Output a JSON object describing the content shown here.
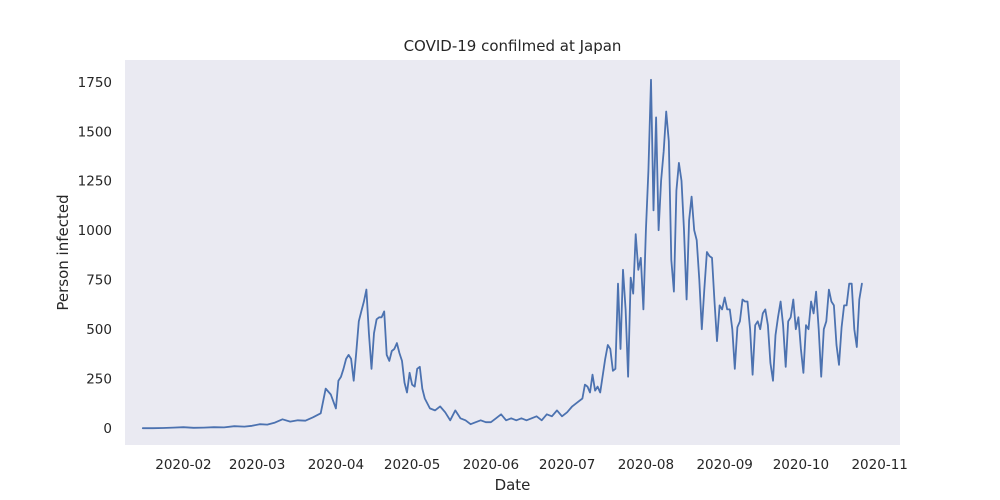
{
  "chart_data": {
    "type": "line",
    "title": "COVID-19 confilmed at Japan",
    "xlabel": "Date",
    "ylabel": "Person infected",
    "grid": false,
    "x_range": [
      "2020-01-09",
      "2020-11-09"
    ],
    "x_ticks": [
      "2020-02",
      "2020-03",
      "2020-04",
      "2020-05",
      "2020-06",
      "2020-07",
      "2020-08",
      "2020-09",
      "2020-10",
      "2020-11"
    ],
    "ylim": [
      -85,
      1860
    ],
    "y_ticks": [
      0,
      250,
      500,
      750,
      1000,
      1250,
      1500,
      1750
    ],
    "series": [
      {
        "color": "#4c72b0",
        "points": [
          [
            "2020-01-16",
            0
          ],
          [
            "2020-01-20",
            0
          ],
          [
            "2020-01-24",
            1
          ],
          [
            "2020-01-28",
            3
          ],
          [
            "2020-02-01",
            5
          ],
          [
            "2020-02-05",
            2
          ],
          [
            "2020-02-09",
            3
          ],
          [
            "2020-02-13",
            5
          ],
          [
            "2020-02-17",
            4
          ],
          [
            "2020-02-21",
            10
          ],
          [
            "2020-02-25",
            8
          ],
          [
            "2020-02-28",
            12
          ],
          [
            "2020-03-02",
            20
          ],
          [
            "2020-03-05",
            18
          ],
          [
            "2020-03-08",
            28
          ],
          [
            "2020-03-11",
            45
          ],
          [
            "2020-03-14",
            33
          ],
          [
            "2020-03-17",
            40
          ],
          [
            "2020-03-20",
            38
          ],
          [
            "2020-03-23",
            55
          ],
          [
            "2020-03-26",
            75
          ],
          [
            "2020-03-28",
            200
          ],
          [
            "2020-03-30",
            170
          ],
          [
            "2020-04-01",
            100
          ],
          [
            "2020-04-02",
            240
          ],
          [
            "2020-04-03",
            260
          ],
          [
            "2020-04-04",
            300
          ],
          [
            "2020-04-05",
            350
          ],
          [
            "2020-04-06",
            370
          ],
          [
            "2020-04-07",
            350
          ],
          [
            "2020-04-08",
            240
          ],
          [
            "2020-04-09",
            380
          ],
          [
            "2020-04-10",
            540
          ],
          [
            "2020-04-11",
            590
          ],
          [
            "2020-04-12",
            640
          ],
          [
            "2020-04-13",
            700
          ],
          [
            "2020-04-14",
            480
          ],
          [
            "2020-04-15",
            300
          ],
          [
            "2020-04-16",
            480
          ],
          [
            "2020-04-17",
            550
          ],
          [
            "2020-04-18",
            560
          ],
          [
            "2020-04-19",
            560
          ],
          [
            "2020-04-20",
            590
          ],
          [
            "2020-04-21",
            370
          ],
          [
            "2020-04-22",
            340
          ],
          [
            "2020-04-23",
            390
          ],
          [
            "2020-04-24",
            400
          ],
          [
            "2020-04-25",
            430
          ],
          [
            "2020-04-26",
            380
          ],
          [
            "2020-04-27",
            340
          ],
          [
            "2020-04-28",
            230
          ],
          [
            "2020-04-29",
            180
          ],
          [
            "2020-04-30",
            280
          ],
          [
            "2020-05-01",
            220
          ],
          [
            "2020-05-02",
            210
          ],
          [
            "2020-05-03",
            300
          ],
          [
            "2020-05-04",
            310
          ],
          [
            "2020-05-05",
            200
          ],
          [
            "2020-05-06",
            150
          ],
          [
            "2020-05-08",
            100
          ],
          [
            "2020-05-10",
            90
          ],
          [
            "2020-05-12",
            110
          ],
          [
            "2020-05-14",
            80
          ],
          [
            "2020-05-16",
            40
          ],
          [
            "2020-05-18",
            90
          ],
          [
            "2020-05-20",
            50
          ],
          [
            "2020-05-22",
            40
          ],
          [
            "2020-05-24",
            20
          ],
          [
            "2020-05-26",
            30
          ],
          [
            "2020-05-28",
            40
          ],
          [
            "2020-05-30",
            30
          ],
          [
            "2020-06-01",
            30
          ],
          [
            "2020-06-03",
            50
          ],
          [
            "2020-06-05",
            70
          ],
          [
            "2020-06-07",
            40
          ],
          [
            "2020-06-09",
            50
          ],
          [
            "2020-06-11",
            40
          ],
          [
            "2020-06-13",
            50
          ],
          [
            "2020-06-15",
            40
          ],
          [
            "2020-06-17",
            50
          ],
          [
            "2020-06-19",
            60
          ],
          [
            "2020-06-21",
            40
          ],
          [
            "2020-06-23",
            70
          ],
          [
            "2020-06-25",
            60
          ],
          [
            "2020-06-27",
            90
          ],
          [
            "2020-06-29",
            60
          ],
          [
            "2020-07-01",
            80
          ],
          [
            "2020-07-03",
            110
          ],
          [
            "2020-07-05",
            130
          ],
          [
            "2020-07-07",
            150
          ],
          [
            "2020-07-08",
            220
          ],
          [
            "2020-07-09",
            210
          ],
          [
            "2020-07-10",
            180
          ],
          [
            "2020-07-11",
            270
          ],
          [
            "2020-07-12",
            190
          ],
          [
            "2020-07-13",
            210
          ],
          [
            "2020-07-14",
            180
          ],
          [
            "2020-07-16",
            350
          ],
          [
            "2020-07-17",
            420
          ],
          [
            "2020-07-18",
            400
          ],
          [
            "2020-07-19",
            290
          ],
          [
            "2020-07-20",
            300
          ],
          [
            "2020-07-21",
            730
          ],
          [
            "2020-07-22",
            400
          ],
          [
            "2020-07-23",
            800
          ],
          [
            "2020-07-24",
            600
          ],
          [
            "2020-07-25",
            260
          ],
          [
            "2020-07-26",
            760
          ],
          [
            "2020-07-27",
            680
          ],
          [
            "2020-07-28",
            980
          ],
          [
            "2020-07-29",
            800
          ],
          [
            "2020-07-30",
            860
          ],
          [
            "2020-07-31",
            600
          ],
          [
            "2020-08-01",
            1000
          ],
          [
            "2020-08-02",
            1300
          ],
          [
            "2020-08-03",
            1760
          ],
          [
            "2020-08-04",
            1100
          ],
          [
            "2020-08-05",
            1570
          ],
          [
            "2020-08-06",
            1000
          ],
          [
            "2020-08-07",
            1250
          ],
          [
            "2020-08-08",
            1400
          ],
          [
            "2020-08-09",
            1600
          ],
          [
            "2020-08-10",
            1450
          ],
          [
            "2020-08-11",
            850
          ],
          [
            "2020-08-12",
            690
          ],
          [
            "2020-08-13",
            1200
          ],
          [
            "2020-08-14",
            1340
          ],
          [
            "2020-08-15",
            1250
          ],
          [
            "2020-08-16",
            1000
          ],
          [
            "2020-08-17",
            650
          ],
          [
            "2020-08-18",
            1050
          ],
          [
            "2020-08-19",
            1170
          ],
          [
            "2020-08-20",
            1000
          ],
          [
            "2020-08-21",
            950
          ],
          [
            "2020-08-22",
            750
          ],
          [
            "2020-08-23",
            500
          ],
          [
            "2020-08-24",
            700
          ],
          [
            "2020-08-25",
            890
          ],
          [
            "2020-08-26",
            870
          ],
          [
            "2020-08-27",
            860
          ],
          [
            "2020-08-28",
            640
          ],
          [
            "2020-08-29",
            440
          ],
          [
            "2020-08-30",
            620
          ],
          [
            "2020-08-31",
            600
          ],
          [
            "2020-09-01",
            660
          ],
          [
            "2020-09-02",
            600
          ],
          [
            "2020-09-03",
            600
          ],
          [
            "2020-09-04",
            500
          ],
          [
            "2020-09-05",
            300
          ],
          [
            "2020-09-06",
            510
          ],
          [
            "2020-09-07",
            540
          ],
          [
            "2020-09-08",
            650
          ],
          [
            "2020-09-09",
            640
          ],
          [
            "2020-09-10",
            640
          ],
          [
            "2020-09-11",
            500
          ],
          [
            "2020-09-12",
            270
          ],
          [
            "2020-09-13",
            520
          ],
          [
            "2020-09-14",
            540
          ],
          [
            "2020-09-15",
            500
          ],
          [
            "2020-09-16",
            580
          ],
          [
            "2020-09-17",
            600
          ],
          [
            "2020-09-18",
            520
          ],
          [
            "2020-09-19",
            330
          ],
          [
            "2020-09-20",
            240
          ],
          [
            "2020-09-21",
            470
          ],
          [
            "2020-09-22",
            560
          ],
          [
            "2020-09-23",
            640
          ],
          [
            "2020-09-24",
            520
          ],
          [
            "2020-09-25",
            310
          ],
          [
            "2020-09-26",
            540
          ],
          [
            "2020-09-27",
            560
          ],
          [
            "2020-09-28",
            650
          ],
          [
            "2020-09-29",
            500
          ],
          [
            "2020-09-30",
            560
          ],
          [
            "2020-10-01",
            400
          ],
          [
            "2020-10-02",
            280
          ],
          [
            "2020-10-03",
            520
          ],
          [
            "2020-10-04",
            500
          ],
          [
            "2020-10-05",
            640
          ],
          [
            "2020-10-06",
            580
          ],
          [
            "2020-10-07",
            690
          ],
          [
            "2020-10-08",
            500
          ],
          [
            "2020-10-09",
            260
          ],
          [
            "2020-10-10",
            500
          ],
          [
            "2020-10-11",
            540
          ],
          [
            "2020-10-12",
            700
          ],
          [
            "2020-10-13",
            640
          ],
          [
            "2020-10-14",
            620
          ],
          [
            "2020-10-15",
            420
          ],
          [
            "2020-10-16",
            320
          ],
          [
            "2020-10-17",
            510
          ],
          [
            "2020-10-18",
            620
          ],
          [
            "2020-10-19",
            620
          ],
          [
            "2020-10-20",
            730
          ],
          [
            "2020-10-21",
            730
          ],
          [
            "2020-10-22",
            500
          ],
          [
            "2020-10-23",
            410
          ],
          [
            "2020-10-24",
            650
          ],
          [
            "2020-10-25",
            730
          ]
        ]
      }
    ]
  }
}
